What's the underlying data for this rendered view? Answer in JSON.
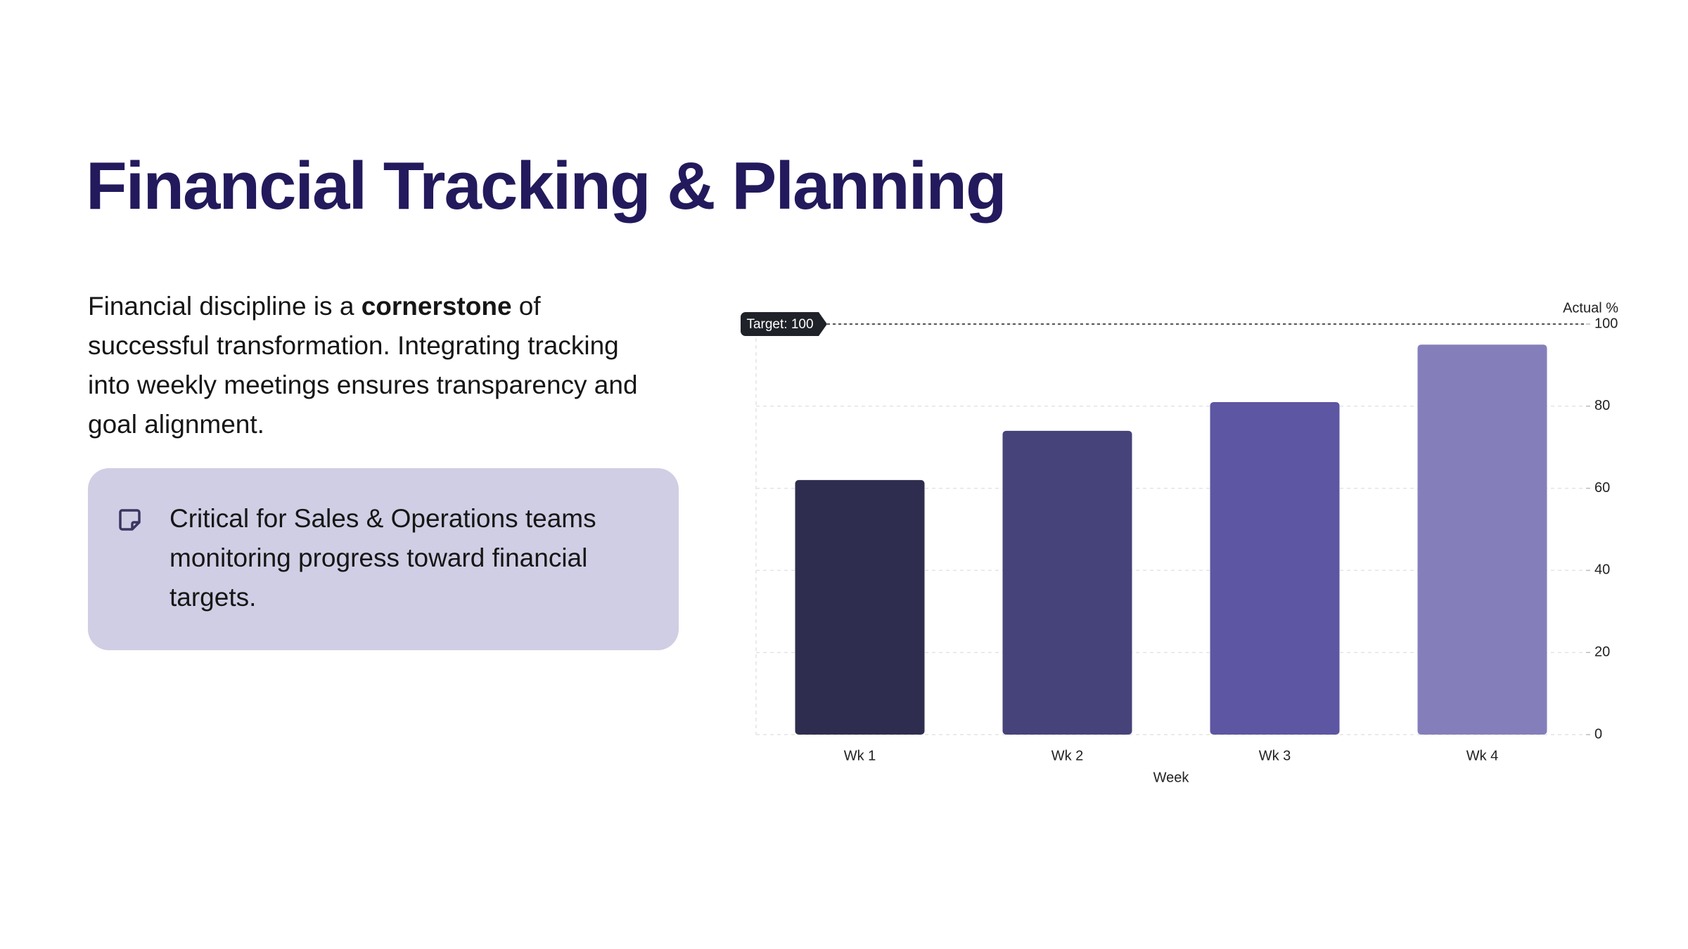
{
  "header": {
    "title": "Financial Tracking & Planning"
  },
  "body": {
    "paragraph": [
      "Financial discipline is a ",
      "cornerstone",
      " of successful transformation. Integrating tracking into weekly meetings ensures transparency and goal alignment."
    ]
  },
  "callout": {
    "text": "Critical for Sales & Operations teams monitoring progress toward financial targets."
  },
  "chart_data": {
    "type": "bar",
    "categories": [
      "Wk 1",
      "Wk 2",
      "Wk 3",
      "Wk 4"
    ],
    "values": [
      62,
      74,
      81,
      95
    ],
    "colors": [
      "#2f2d4f",
      "#46437a",
      "#5d56a2",
      "#847fbb"
    ],
    "x_label": "Week",
    "y_label": "Actual %",
    "ylim": [
      0,
      100
    ],
    "yticks": [
      0,
      20,
      40,
      60,
      80,
      100
    ],
    "grid": true,
    "target": {
      "value": 100,
      "label": "Target: 100"
    }
  }
}
